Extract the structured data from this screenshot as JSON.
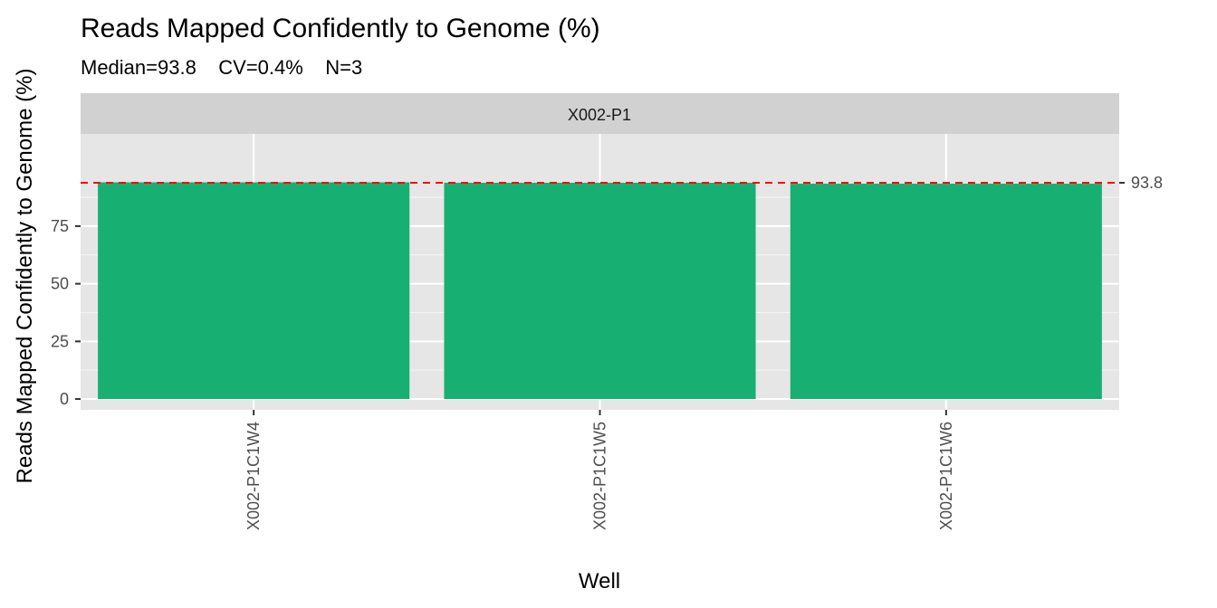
{
  "chart_data": {
    "type": "bar",
    "title": "Reads Mapped Confidently to Genome (%)",
    "subtitle": "Median=93.8    CV=0.4%    N=3",
    "xlabel": "Well",
    "ylabel": "Reads Mapped Confidently to Genome (%)",
    "facet": "X002-P1",
    "categories": [
      "X002-P1C1W4",
      "X002-P1C1W5",
      "X002-P1C1W6"
    ],
    "values": [
      94.0,
      93.8,
      93.4
    ],
    "ylim": [
      -4.7,
      115
    ],
    "yticks": [
      0,
      25,
      50,
      75
    ],
    "reference_line": {
      "value": 93.8,
      "label": "93.8",
      "color": "#ff0000",
      "style": "dashed"
    },
    "bar_color": "#18af72",
    "panel_background": "#e6e6e6",
    "strip_background": "#d1d1d1",
    "grid": true,
    "legend": "none"
  }
}
